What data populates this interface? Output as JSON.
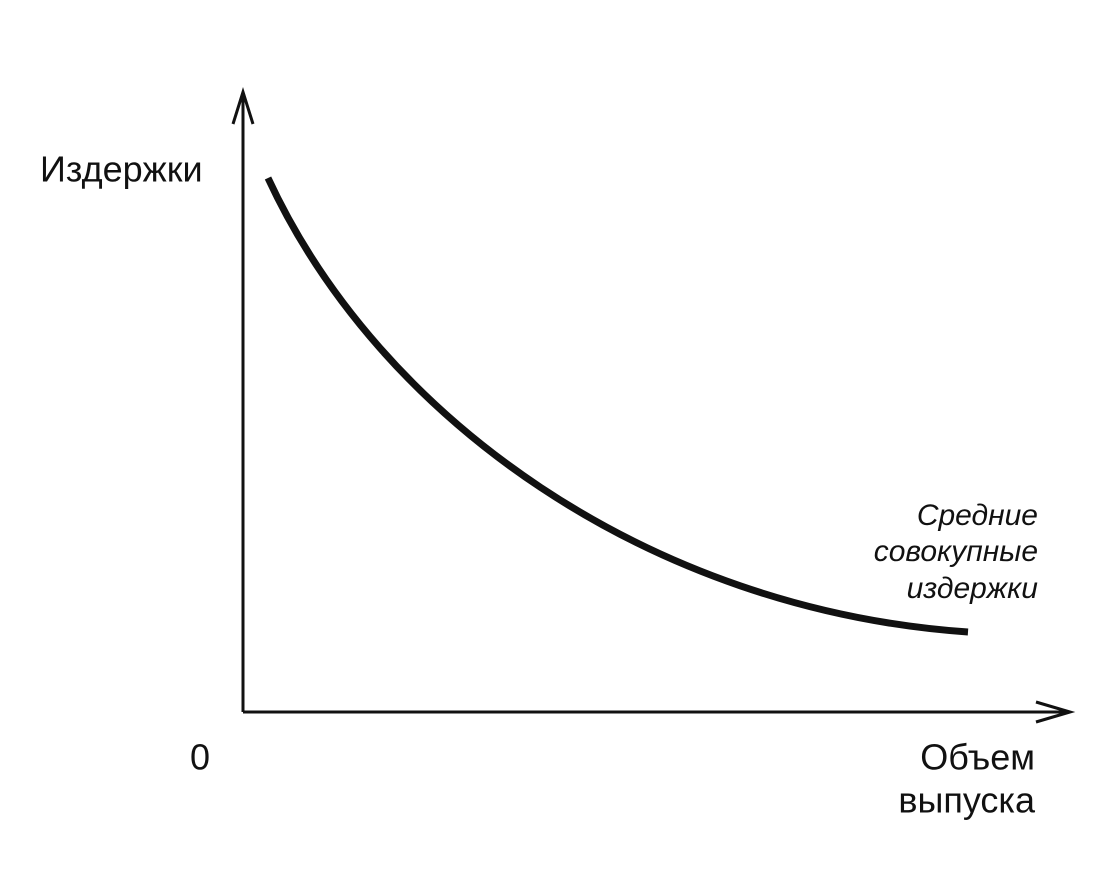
{
  "y_axis": {
    "label": "Издержки"
  },
  "x_axis": {
    "label_lines": [
      "Объем",
      "выпуска"
    ]
  },
  "origin_label": "0",
  "curve": {
    "label_lines": [
      "Средние",
      "совокупные",
      "издержки"
    ]
  }
}
